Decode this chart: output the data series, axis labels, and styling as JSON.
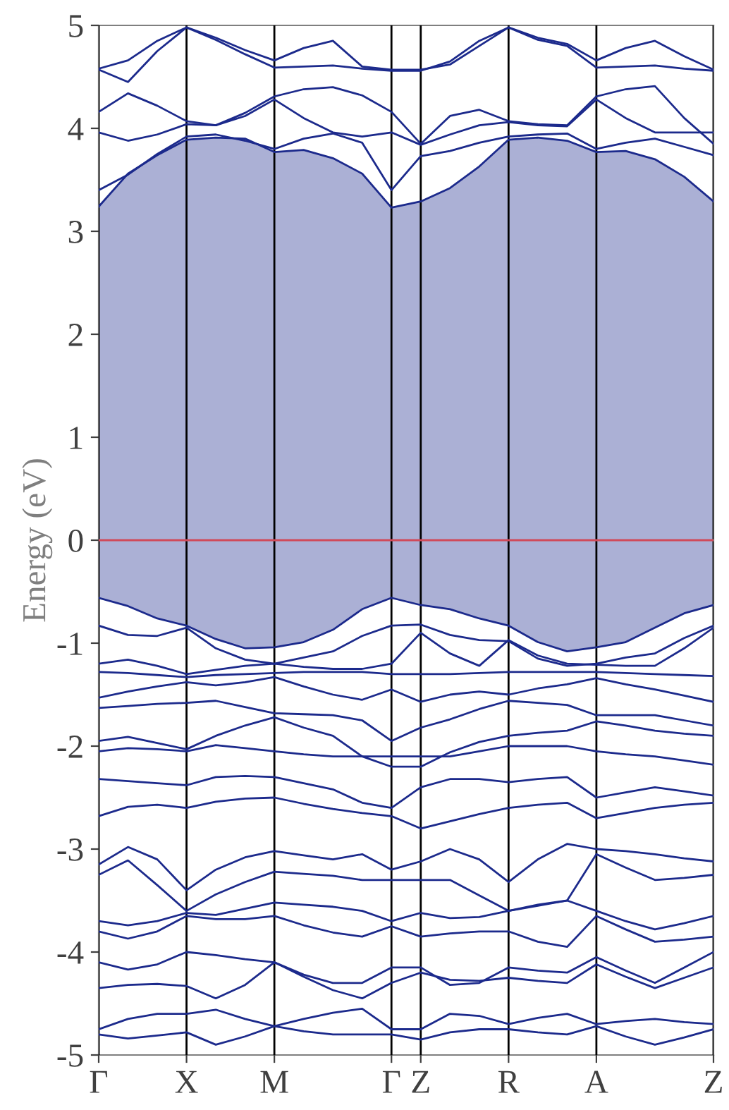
{
  "chart_data": {
    "type": "line",
    "ylabel": "Energy (eV)",
    "categories": [
      "Γ",
      null,
      null,
      "X",
      null,
      null,
      "M",
      null,
      null,
      null,
      "Γ",
      "Z",
      null,
      null,
      "R",
      null,
      null,
      "A",
      null,
      null,
      null,
      "Z"
    ],
    "ylim": [
      -5,
      5
    ],
    "yticks": [
      -5,
      -4,
      -3,
      -2,
      -1,
      0,
      1,
      2,
      3,
      4,
      5
    ],
    "grid": "x",
    "marker": "none",
    "line_style": "solid",
    "ref_lines": [
      {
        "axis": "y",
        "value": 0,
        "color": "#d04a5a"
      }
    ],
    "series": [
      {
        "color": "#1c2a8c",
        "values": [
          3.24,
          3.56,
          3.74,
          3.89,
          3.91,
          3.9,
          3.77,
          3.79,
          3.71,
          3.56,
          3.23,
          3.29,
          3.42,
          3.63,
          3.89,
          3.91,
          3.88,
          3.77,
          3.78,
          3.7,
          3.53,
          3.29
        ],
        "lower": [
          -0.56,
          -0.64,
          -0.76,
          -0.83,
          -0.96,
          -1.05,
          -1.04,
          -0.99,
          -0.87,
          -0.67,
          -0.56,
          -0.63,
          -0.67,
          -0.76,
          -0.83,
          -0.99,
          -1.08,
          -1.04,
          -0.99,
          -0.85,
          -0.71,
          -0.63
        ],
        "upper": [
          3.24,
          3.56,
          3.74,
          3.89,
          3.91,
          3.9,
          3.77,
          3.79,
          3.71,
          3.56,
          3.23,
          3.29,
          3.42,
          3.63,
          3.89,
          3.91,
          3.88,
          3.77,
          3.78,
          3.7,
          3.53,
          3.29
        ]
      },
      {
        "color": "#1c2a8c",
        "values": [
          3.4,
          3.55,
          3.75,
          3.92,
          3.94,
          3.88,
          3.8,
          3.9,
          3.95,
          3.86,
          3.4,
          3.73,
          3.78,
          3.86,
          3.92,
          3.94,
          3.95,
          3.8,
          3.86,
          3.9,
          3.82,
          3.74
        ]
      },
      {
        "color": "#1c2a8c",
        "values": [
          3.96,
          3.88,
          3.94,
          4.04,
          4.03,
          4.12,
          4.28,
          4.1,
          3.96,
          3.92,
          3.96,
          3.84,
          3.94,
          4.03,
          4.06,
          4.03,
          4.02,
          4.28,
          4.1,
          3.96,
          3.96,
          3.96
        ]
      },
      {
        "color": "#1c2a8c",
        "values": [
          4.16,
          4.34,
          4.22,
          4.07,
          4.03,
          4.15,
          4.31,
          4.38,
          4.4,
          4.32,
          4.16,
          3.85,
          4.12,
          4.18,
          4.07,
          4.04,
          4.03,
          4.31,
          4.38,
          4.41,
          4.1,
          3.85
        ]
      },
      {
        "color": "#1c2a8c",
        "values": [
          4.57,
          4.45,
          4.75,
          4.98,
          4.88,
          4.76,
          4.66,
          4.78,
          4.85,
          4.6,
          4.57,
          4.57,
          4.62,
          4.8,
          4.98,
          4.88,
          4.82,
          4.66,
          4.78,
          4.85,
          4.7,
          4.57
        ]
      },
      {
        "color": "#1c2a8c",
        "values": [
          4.58,
          4.66,
          4.85,
          4.98,
          4.86,
          4.72,
          4.59,
          4.6,
          4.61,
          4.58,
          4.56,
          4.56,
          4.65,
          4.85,
          4.98,
          4.86,
          4.8,
          4.59,
          4.6,
          4.61,
          4.58,
          4.56
        ]
      },
      {
        "color": "#1c2a8c",
        "values": [
          -0.56,
          -0.64,
          -0.76,
          -0.83,
          -0.96,
          -1.05,
          -1.04,
          -0.99,
          -0.87,
          -0.67,
          -0.56,
          -0.63,
          -0.67,
          -0.76,
          -0.83,
          -0.99,
          -1.08,
          -1.04,
          -0.99,
          -0.85,
          -0.71,
          -0.63
        ]
      },
      {
        "color": "#1c2a8c",
        "values": [
          -0.83,
          -0.92,
          -0.93,
          -0.85,
          -1.05,
          -1.16,
          -1.2,
          -1.14,
          -1.08,
          -0.93,
          -0.83,
          -0.82,
          -0.92,
          -0.97,
          -0.98,
          -1.15,
          -1.22,
          -1.2,
          -1.14,
          -1.1,
          -0.95,
          -0.83
        ]
      },
      {
        "color": "#1c2a8c",
        "values": [
          -1.2,
          -1.16,
          -1.22,
          -1.3,
          -1.26,
          -1.22,
          -1.2,
          -1.23,
          -1.25,
          -1.25,
          -1.2,
          -0.9,
          -1.1,
          -1.22,
          -0.97,
          -1.12,
          -1.2,
          -1.21,
          -1.22,
          -1.22,
          -1.05,
          -0.85
        ]
      },
      {
        "color": "#1c2a8c",
        "values": [
          -1.28,
          -1.29,
          -1.31,
          -1.33,
          -1.31,
          -1.3,
          -1.29,
          -1.28,
          -1.28,
          -1.28,
          -1.3,
          -1.3,
          -1.3,
          -1.29,
          -1.28,
          -1.28,
          -1.28,
          -1.28,
          -1.29,
          -1.3,
          -1.31,
          -1.32
        ]
      },
      {
        "color": "#1c2a8c",
        "values": [
          -1.53,
          -1.47,
          -1.42,
          -1.38,
          -1.41,
          -1.38,
          -1.33,
          -1.42,
          -1.5,
          -1.55,
          -1.45,
          -1.57,
          -1.5,
          -1.47,
          -1.5,
          -1.44,
          -1.4,
          -1.34,
          -1.4,
          -1.45,
          -1.51,
          -1.57
        ]
      },
      {
        "color": "#1c2a8c",
        "values": [
          -1.63,
          -1.61,
          -1.59,
          -1.58,
          -1.56,
          -1.62,
          -1.68,
          -1.69,
          -1.7,
          -1.75,
          -1.95,
          -1.82,
          -1.74,
          -1.64,
          -1.56,
          -1.58,
          -1.6,
          -1.7,
          -1.7,
          -1.7,
          -1.75,
          -1.8
        ]
      },
      {
        "color": "#1c2a8c",
        "values": [
          -1.95,
          -1.91,
          -1.97,
          -2.03,
          -1.9,
          -1.8,
          -1.72,
          -1.82,
          -1.9,
          -2.1,
          -2.2,
          -2.2,
          -2.06,
          -1.96,
          -1.9,
          -1.87,
          -1.85,
          -1.76,
          -1.8,
          -1.85,
          -1.88,
          -1.9
        ]
      },
      {
        "color": "#1c2a8c",
        "values": [
          -2.05,
          -2.02,
          -2.03,
          -2.05,
          -1.99,
          -2.02,
          -2.05,
          -2.08,
          -2.1,
          -2.1,
          -2.1,
          -2.1,
          -2.1,
          -2.05,
          -2.0,
          -2.0,
          -2.0,
          -2.05,
          -2.08,
          -2.1,
          -2.14,
          -2.18
        ]
      },
      {
        "color": "#1c2a8c",
        "values": [
          -2.32,
          -2.34,
          -2.36,
          -2.38,
          -2.3,
          -2.29,
          -2.3,
          -2.36,
          -2.42,
          -2.55,
          -2.6,
          -2.4,
          -2.32,
          -2.32,
          -2.35,
          -2.32,
          -2.3,
          -2.5,
          -2.45,
          -2.4,
          -2.44,
          -2.48
        ]
      },
      {
        "color": "#1c2a8c",
        "values": [
          -2.68,
          -2.59,
          -2.57,
          -2.6,
          -2.54,
          -2.51,
          -2.5,
          -2.56,
          -2.61,
          -2.65,
          -2.68,
          -2.8,
          -2.73,
          -2.66,
          -2.6,
          -2.57,
          -2.55,
          -2.7,
          -2.65,
          -2.6,
          -2.57,
          -2.55
        ]
      },
      {
        "color": "#1c2a8c",
        "values": [
          -3.15,
          -2.98,
          -3.1,
          -3.4,
          -3.2,
          -3.08,
          -3.02,
          -3.06,
          -3.1,
          -3.05,
          -3.2,
          -3.12,
          -3.0,
          -3.1,
          -3.32,
          -3.1,
          -2.95,
          -3.0,
          -3.02,
          -3.05,
          -3.09,
          -3.12
        ]
      },
      {
        "color": "#1c2a8c",
        "values": [
          -3.25,
          -3.11,
          -3.35,
          -3.6,
          -3.44,
          -3.32,
          -3.22,
          -3.24,
          -3.26,
          -3.3,
          -3.3,
          -3.3,
          -3.3,
          -3.45,
          -3.6,
          -3.55,
          -3.5,
          -3.05,
          -3.18,
          -3.3,
          -3.28,
          -3.25
        ]
      },
      {
        "color": "#1c2a8c",
        "values": [
          -3.7,
          -3.74,
          -3.7,
          -3.62,
          -3.64,
          -3.58,
          -3.52,
          -3.54,
          -3.56,
          -3.6,
          -3.7,
          -3.62,
          -3.67,
          -3.66,
          -3.6,
          -3.54,
          -3.5,
          -3.6,
          -3.7,
          -3.78,
          -3.72,
          -3.65
        ]
      },
      {
        "color": "#1c2a8c",
        "values": [
          -3.8,
          -3.87,
          -3.8,
          -3.65,
          -3.68,
          -3.68,
          -3.65,
          -3.74,
          -3.81,
          -3.85,
          -3.75,
          -3.85,
          -3.82,
          -3.8,
          -3.8,
          -3.9,
          -3.95,
          -3.65,
          -3.78,
          -3.9,
          -3.88,
          -3.85
        ]
      },
      {
        "color": "#1c2a8c",
        "values": [
          -4.1,
          -4.17,
          -4.12,
          -4.0,
          -4.03,
          -4.07,
          -4.1,
          -4.22,
          -4.3,
          -4.3,
          -4.15,
          -4.15,
          -4.32,
          -4.3,
          -4.15,
          -4.18,
          -4.2,
          -4.05,
          -4.18,
          -4.3,
          -4.15,
          -4.0
        ]
      },
      {
        "color": "#1c2a8c",
        "values": [
          -4.35,
          -4.32,
          -4.31,
          -4.33,
          -4.45,
          -4.32,
          -4.1,
          -4.24,
          -4.37,
          -4.45,
          -4.3,
          -4.2,
          -4.27,
          -4.28,
          -4.25,
          -4.28,
          -4.3,
          -4.12,
          -4.24,
          -4.35,
          -4.25,
          -4.15
        ]
      },
      {
        "color": "#1c2a8c",
        "values": [
          -4.75,
          -4.65,
          -4.6,
          -4.6,
          -4.56,
          -4.65,
          -4.72,
          -4.65,
          -4.59,
          -4.55,
          -4.75,
          -4.75,
          -4.6,
          -4.62,
          -4.7,
          -4.64,
          -4.6,
          -4.7,
          -4.67,
          -4.65,
          -4.68,
          -4.7
        ]
      },
      {
        "color": "#1c2a8c",
        "values": [
          -4.8,
          -4.84,
          -4.81,
          -4.78,
          -4.9,
          -4.82,
          -4.72,
          -4.77,
          -4.8,
          -4.8,
          -4.8,
          -4.85,
          -4.78,
          -4.75,
          -4.75,
          -4.78,
          -4.8,
          -4.72,
          -4.82,
          -4.9,
          -4.83,
          -4.75
        ]
      }
    ]
  }
}
